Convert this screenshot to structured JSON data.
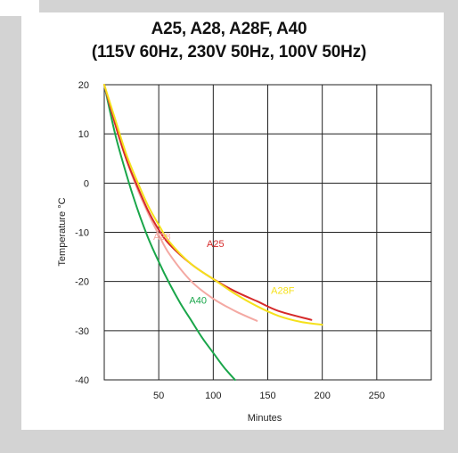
{
  "title_line1": "A25, A28, A28F, A40",
  "title_line2": "(115V 60Hz, 230V 50Hz, 100V 50Hz)",
  "chart_data": {
    "type": "line",
    "title": "A25, A28, A28F, A40 (115V 60Hz, 230V 50Hz, 100V 50Hz)",
    "xlabel": "Minutes",
    "ylabel": "Temperature °C",
    "xlim": [
      0,
      300
    ],
    "ylim": [
      -40,
      20
    ],
    "grid": true,
    "x_ticks": [
      50,
      100,
      150,
      200,
      250
    ],
    "x_tick_labels": [
      "50",
      "100",
      "150",
      "200",
      "250"
    ],
    "y_ticks": [
      20,
      10,
      0,
      -10,
      -20,
      -30,
      -40
    ],
    "y_tick_labels": [
      "20",
      "10",
      "0",
      "-10",
      "-20",
      "-30",
      "-40"
    ],
    "series": [
      {
        "name": "A40",
        "color": "#1aa64a",
        "label_at": [
          78,
          -24.5
        ],
        "points": [
          [
            0,
            20
          ],
          [
            10,
            10
          ],
          [
            20,
            2
          ],
          [
            30,
            -5
          ],
          [
            40,
            -11
          ],
          [
            50,
            -16
          ],
          [
            60,
            -20.5
          ],
          [
            70,
            -24.5
          ],
          [
            80,
            -28
          ],
          [
            90,
            -31.5
          ],
          [
            100,
            -34.5
          ],
          [
            110,
            -37.5
          ],
          [
            120,
            -40
          ]
        ]
      },
      {
        "name": "A28",
        "color": "#f4a9a3",
        "label_at": [
          45,
          -11.5
        ],
        "points": [
          [
            0,
            20
          ],
          [
            10,
            12
          ],
          [
            20,
            5
          ],
          [
            30,
            -1
          ],
          [
            40,
            -6
          ],
          [
            50,
            -10.5
          ],
          [
            60,
            -14.5
          ],
          [
            80,
            -20
          ],
          [
            100,
            -23.5
          ],
          [
            120,
            -26
          ],
          [
            140,
            -28
          ]
        ]
      },
      {
        "name": "A25",
        "color": "#d62a2a",
        "label_at": [
          94,
          -13
        ],
        "points": [
          [
            0,
            20
          ],
          [
            10,
            12
          ],
          [
            20,
            5
          ],
          [
            30,
            -0.5
          ],
          [
            40,
            -5.5
          ],
          [
            50,
            -9.5
          ],
          [
            60,
            -12.5
          ],
          [
            80,
            -16.5
          ],
          [
            100,
            -19.5
          ],
          [
            120,
            -22
          ],
          [
            140,
            -24
          ],
          [
            160,
            -26
          ],
          [
            190,
            -27.8
          ]
        ]
      },
      {
        "name": "A28F",
        "color": "#f5e11c",
        "label_at": [
          153,
          -22.5
        ],
        "points": [
          [
            0,
            20
          ],
          [
            10,
            13
          ],
          [
            20,
            6
          ],
          [
            30,
            0.5
          ],
          [
            40,
            -4.5
          ],
          [
            50,
            -8.5
          ],
          [
            60,
            -12
          ],
          [
            80,
            -16.5
          ],
          [
            100,
            -19.5
          ],
          [
            120,
            -22.5
          ],
          [
            140,
            -25
          ],
          [
            160,
            -27
          ],
          [
            180,
            -28.2
          ],
          [
            200,
            -28.8
          ]
        ]
      }
    ]
  }
}
